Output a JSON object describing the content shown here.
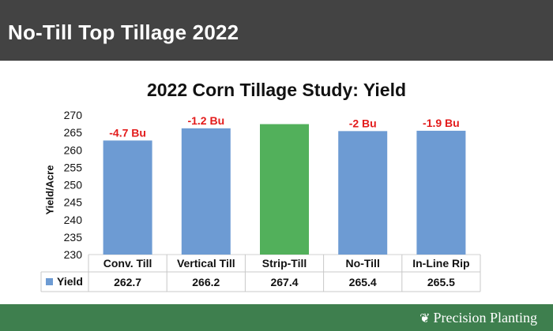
{
  "header": {
    "title": "No-Till Top Tillage 2022"
  },
  "brand": {
    "logo_text": "Precision Planting",
    "logo_icon": "leaf-mark-icon"
  },
  "colors": {
    "header_bg": "#434343",
    "footer_bg": "#3e7f4e",
    "bar_blue": "#6d9bd3",
    "bar_green": "#52b05b",
    "label_red": "#e31b1b"
  },
  "chart_data": {
    "type": "bar",
    "title": "2022 Corn Tillage Study: Yield",
    "ylabel": "Yield/Acre",
    "xlabel": "",
    "ylim": [
      230,
      270
    ],
    "yticks": [
      230,
      235,
      240,
      245,
      250,
      255,
      260,
      265,
      270
    ],
    "grid": false,
    "categories": [
      "Conv. Till",
      "Vertical Till",
      "Strip-Till",
      "No-Till",
      "In-Line Rip"
    ],
    "series": [
      {
        "name": "Yield",
        "values": [
          262.7,
          266.2,
          267.4,
          265.4,
          265.5
        ]
      }
    ],
    "highlight_index": 2,
    "annotations": [
      "-4.7 Bu",
      "-1.2 Bu",
      "",
      "-2 Bu",
      "-1.9 Bu"
    ],
    "data_table": {
      "series_label": "Yield",
      "values": [
        "262.7",
        "266.2",
        "267.4",
        "265.4",
        "265.5"
      ]
    }
  }
}
